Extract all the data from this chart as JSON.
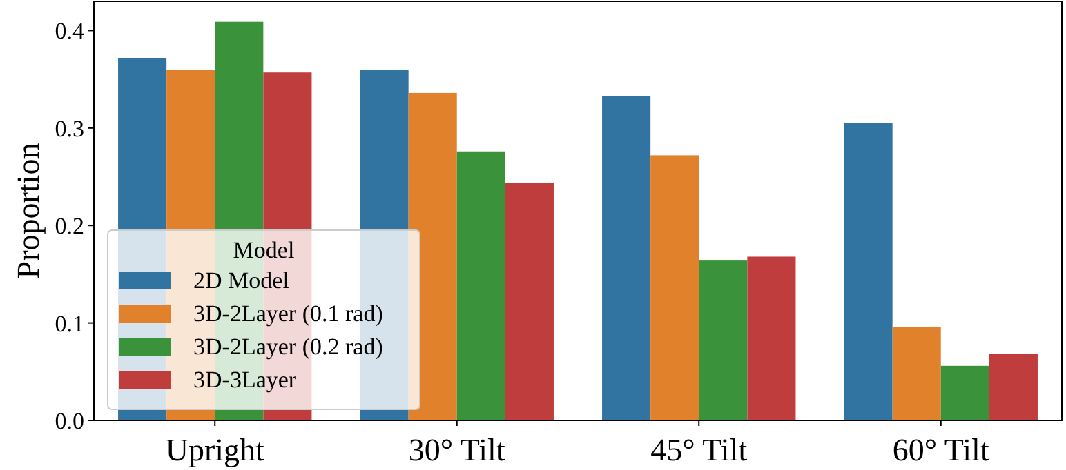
{
  "chart_data": {
    "type": "bar",
    "ylabel": "Proportion",
    "legend_title": "Model",
    "legend": "bottom left",
    "categories": [
      "Upright",
      "30° Tilt",
      "45° Tilt",
      "60° Tilt"
    ],
    "series": [
      {
        "name": "2D Model",
        "color": "#3274a1",
        "values": [
          0.372,
          0.36,
          0.333,
          0.305
        ]
      },
      {
        "name": "3D-2Layer (0.1 rad)",
        "color": "#e1812c",
        "values": [
          0.36,
          0.336,
          0.272,
          0.096
        ]
      },
      {
        "name": "3D-2Layer (0.2 rad)",
        "color": "#3a923a",
        "values": [
          0.409,
          0.276,
          0.164,
          0.056
        ]
      },
      {
        "name": "3D-3Layer",
        "color": "#c03d3e",
        "values": [
          0.357,
          0.244,
          0.168,
          0.068
        ]
      }
    ],
    "ylim": [
      0,
      0.43
    ],
    "yticks": [
      {
        "value": 0,
        "label": "0.0"
      },
      0.1,
      0.2,
      0.3,
      0.4
    ],
    "grid": false
  }
}
